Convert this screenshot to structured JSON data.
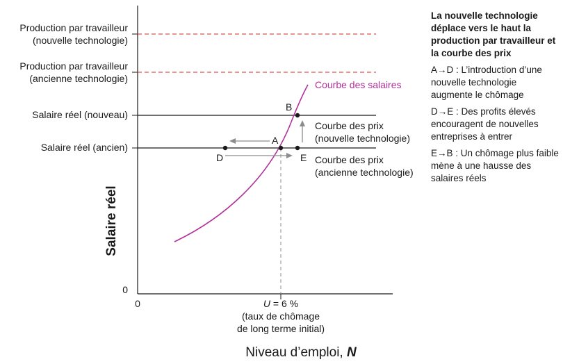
{
  "labels": {
    "prod_new_1": "Production par travailleur",
    "prod_new_2": "(nouvelle technologie)",
    "prod_old_1": "Production par travailleur",
    "prod_old_2": "(ancienne technologie)",
    "wage_new": "Salaire réel (nouveau)",
    "wage_old": "Salaire réel (ancien)",
    "zero_y": "0",
    "zero_x": "0",
    "u_label_var": "U",
    "u_label_val": " = 6 %",
    "u_note_1": "(taux de chômage",
    "u_note_2": "de long terme initial)",
    "ylabel": "Salaire réel",
    "xlabel_text": "Niveau d’emploi, ",
    "xlabel_var": "N",
    "wage_curve": "Courbe des salaires",
    "price_new_1": "Courbe des prix",
    "price_new_2": "(nouvelle technologie)",
    "price_old_1": "Courbe des prix",
    "price_old_2": "(ancienne technologie)",
    "point_a": "A",
    "point_b": "B",
    "point_d": "D",
    "point_e": "E"
  },
  "notes": {
    "heading": "La nouvelle technologie déplace vers le haut la production par travailleur et la courbe des prix",
    "items": [
      "A→D : L’introduction d’une nouvelle technologie augmente le chômage",
      "D→E : Des profits élevés encouragent de nouvelles entreprises à entrer",
      "E→B : Un chômage plus faible mène à une hausse des salaires réels"
    ]
  },
  "colors": {
    "axis": "#1a1a1a",
    "dashed_red": "#d9534f",
    "wage_curve": "#b0329a",
    "arrow_grey": "#8c8c8c",
    "guide_dashed": "#8c8c8c"
  }
}
